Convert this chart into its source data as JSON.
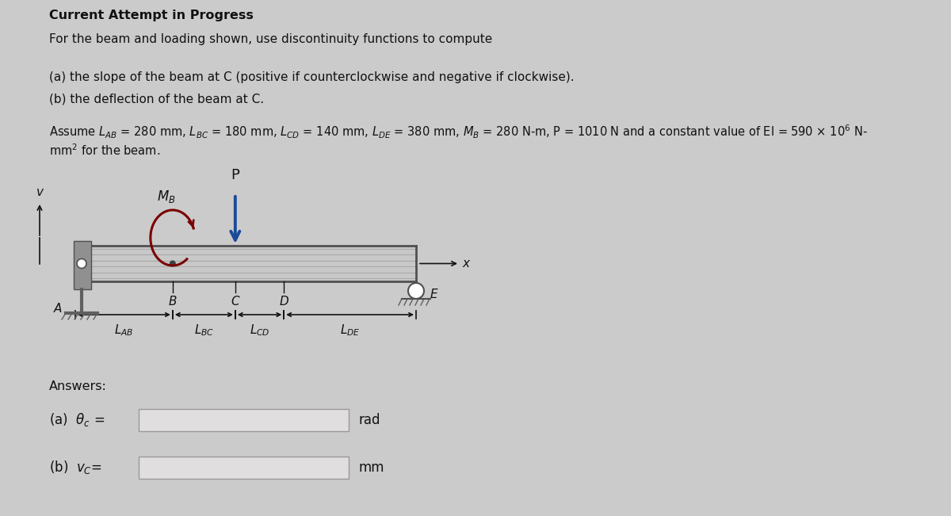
{
  "title": "Current Attempt in Progress",
  "line1": "For the beam and loading shown, use discontinuity functions to compute",
  "line2a": "(a) the slope of the beam at C (positive if counterclockwise and negative if clockwise).",
  "line2b": "(b) the deflection of the beam at C.",
  "assume_part1": "Assume $L_{AB}$ = 280 mm, $L_{BC}$ = 180 mm, $L_{CD}$ = 140 mm, $L_{DE}$ = 380 mm, $M_B$ = 280 N-m, P = 1010 N and a constant value of EI = 590 × 10$^6$ N-",
  "assume_part2": "mm$^2$ for the beam.",
  "answers_label": "Answers:",
  "rad_label": "rad",
  "mm_label": "mm",
  "bg_color": "#cbcbcb",
  "beam_light": "#d4d4d4",
  "beam_mid": "#b8b8b8",
  "beam_dark": "#707070",
  "support_gray": "#808080",
  "arrow_color": "#1a4a99",
  "moment_color": "#7a0000",
  "text_color": "#111111",
  "box_fill": "#e0dede",
  "box_edge": "#999999",
  "LAB": 280,
  "LBC": 180,
  "LCD": 140,
  "LDE": 380
}
